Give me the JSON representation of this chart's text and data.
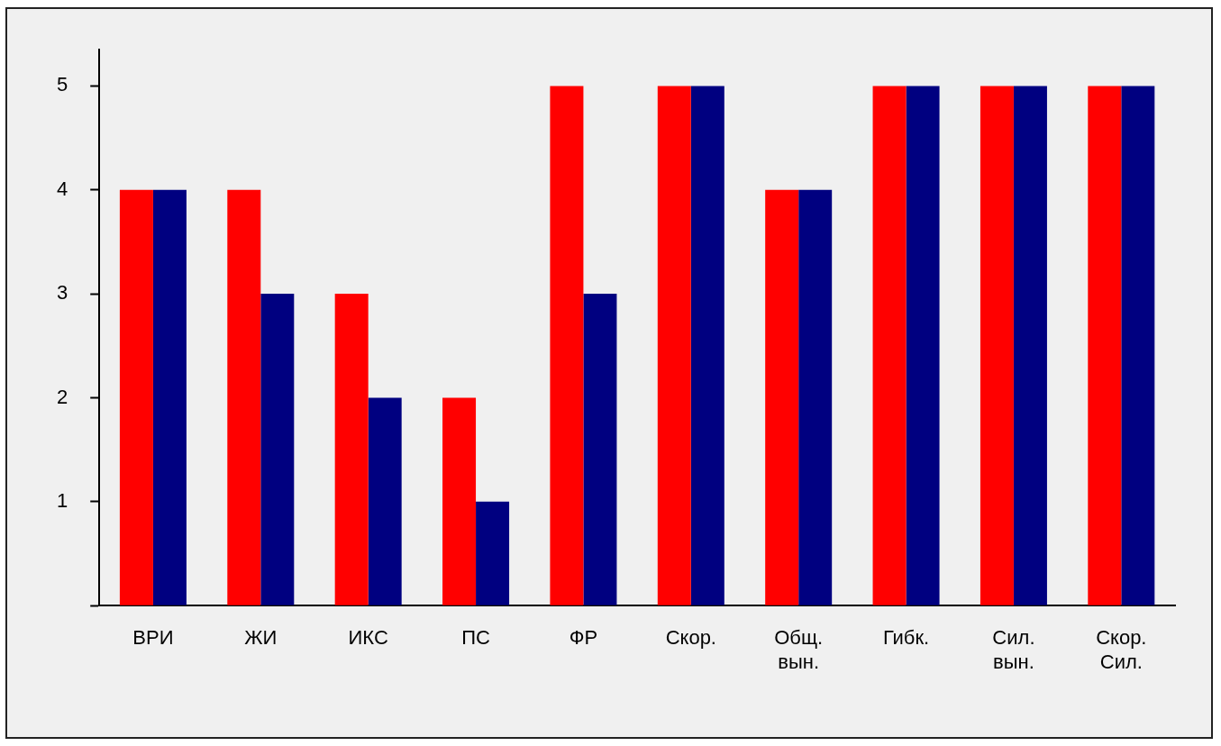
{
  "chart_data": {
    "type": "bar",
    "categories": [
      "ВРИ",
      "ЖИ",
      "ИКС",
      "ПС",
      "ФР",
      "Скор.",
      "Общ. вын.",
      "Гибк.",
      "Сил. вын.",
      "Скор. Сил."
    ],
    "series": [
      {
        "color": "#ff0000",
        "values": [
          4,
          4,
          3,
          2,
          5,
          5,
          4,
          5,
          5,
          5
        ]
      },
      {
        "color": "#000080",
        "values": [
          4,
          3,
          2,
          1,
          3,
          5,
          4,
          5,
          5,
          5
        ]
      }
    ],
    "ylim": [
      0,
      5.35
    ],
    "yticks": [
      {
        "value": 0,
        "label": null
      },
      1,
      2,
      3,
      4,
      5
    ],
    "grid": false,
    "legend": false
  }
}
